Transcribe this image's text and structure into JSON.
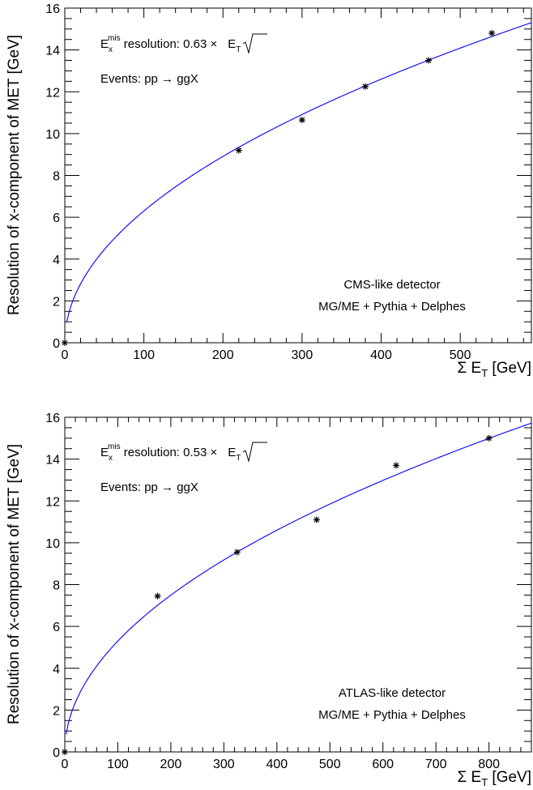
{
  "chart_data": [
    {
      "type": "scatter",
      "ylabel": "Resolution of x-component  of MET [GeV]",
      "xlabel_prefix": "Σ E",
      "xlabel_sub": "T",
      "xlabel_suffix": " [GeV]",
      "xlim": [
        0,
        590
      ],
      "ylim": [
        0,
        16
      ],
      "xticks": [
        0,
        100,
        200,
        300,
        400,
        500
      ],
      "yticks": [
        0,
        2,
        4,
        6,
        8,
        10,
        12,
        14,
        16
      ],
      "points": [
        {
          "x": 0,
          "y": 0
        },
        {
          "x": 220,
          "y": 9.2
        },
        {
          "x": 300,
          "y": 10.65
        },
        {
          "x": 380,
          "y": 12.25
        },
        {
          "x": 460,
          "y": 13.5
        },
        {
          "x": 540,
          "y": 14.8
        }
      ],
      "fit": {
        "coefficient": 0.63,
        "function": "sqrt",
        "color": "#0000ff"
      },
      "annot_res": {
        "e": "E",
        "sub": "x",
        "sup": "mis",
        "text": " resolution: 0.63 ×",
        "sqrt_arg": "E",
        "sqrt_sub": "T"
      },
      "annot_events": "Events: pp → ggX",
      "annot_detector": "CMS-like detector",
      "annot_generator": "MG/ME + Pythia + Delphes"
    },
    {
      "type": "scatter",
      "ylabel": "Resolution of x-component  of MET [GeV]",
      "xlabel_prefix": "Σ E",
      "xlabel_sub": "T",
      "xlabel_suffix": " [GeV]",
      "xlim": [
        0,
        880
      ],
      "ylim": [
        0,
        16
      ],
      "xticks": [
        0,
        100,
        200,
        300,
        400,
        500,
        600,
        700,
        800
      ],
      "yticks": [
        0,
        2,
        4,
        6,
        8,
        10,
        12,
        14,
        16
      ],
      "points": [
        {
          "x": 0,
          "y": 0
        },
        {
          "x": 175,
          "y": 7.45
        },
        {
          "x": 325,
          "y": 9.55
        },
        {
          "x": 475,
          "y": 11.1
        },
        {
          "x": 625,
          "y": 13.7
        },
        {
          "x": 800,
          "y": 15.0
        }
      ],
      "fit": {
        "coefficient": 0.53,
        "function": "sqrt",
        "color": "#0000ff"
      },
      "annot_res": {
        "e": "E",
        "sub": "x",
        "sup": "mis",
        "text": " resolution: 0.53 ×",
        "sqrt_arg": "E",
        "sqrt_sub": "T"
      },
      "annot_events": "Events: pp → ggX",
      "annot_detector": "ATLAS-like detector",
      "annot_generator": "MG/ME + Pythia + Delphes"
    }
  ]
}
